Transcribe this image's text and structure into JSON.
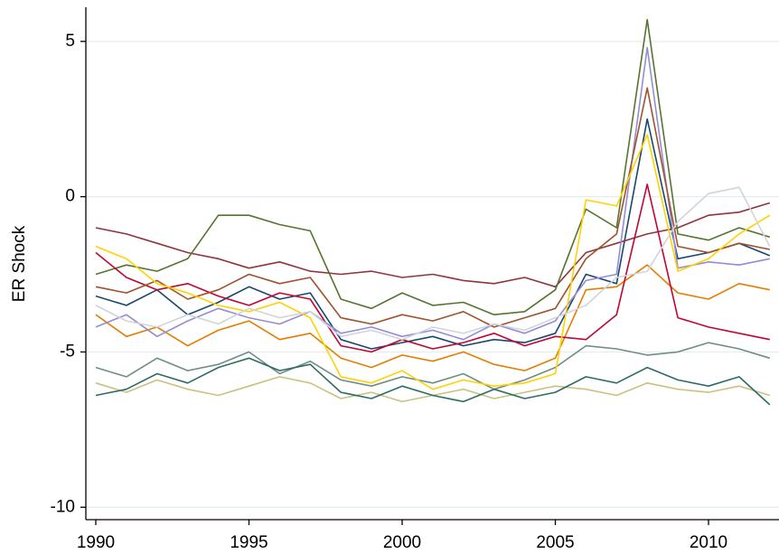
{
  "chart_data": {
    "type": "line",
    "y_label": "ER Shock",
    "x": [
      1990,
      1991,
      1992,
      1993,
      1994,
      1995,
      1996,
      1997,
      1998,
      1999,
      2000,
      2001,
      2002,
      2003,
      2004,
      2005,
      2006,
      2007,
      2008,
      2009,
      2010,
      2011,
      2012
    ],
    "xlim": [
      1990,
      2012
    ],
    "xticks": [
      1990,
      1995,
      2000,
      2005,
      2010
    ],
    "ylim": [
      -10.4,
      6.1
    ],
    "yticks": [
      -10,
      -5,
      0,
      5
    ],
    "grid": true,
    "series": [
      {
        "color": "#1a476f",
        "values": [
          -3.2,
          -3.5,
          -3.0,
          -3.8,
          -3.4,
          -2.9,
          -3.3,
          -3.1,
          -4.6,
          -4.9,
          -4.7,
          -4.5,
          -4.8,
          -4.6,
          -4.7,
          -4.4,
          -2.5,
          -2.8,
          2.5,
          -2.0,
          -1.8,
          -1.5,
          -1.9
        ]
      },
      {
        "color": "#90353b",
        "values": [
          -1.0,
          -1.2,
          -1.5,
          -1.8,
          -2.0,
          -2.3,
          -2.1,
          -2.4,
          -2.5,
          -2.4,
          -2.6,
          -2.5,
          -2.7,
          -2.8,
          -2.6,
          -2.9,
          -1.8,
          -1.5,
          -1.2,
          -1.0,
          -0.6,
          -0.5,
          -0.2
        ]
      },
      {
        "color": "#55752f",
        "values": [
          -2.5,
          -2.2,
          -2.4,
          -2.0,
          -0.6,
          -0.6,
          -0.9,
          -1.1,
          -3.3,
          -3.6,
          -3.1,
          -3.5,
          -3.4,
          -3.8,
          -3.7,
          -3.0,
          -0.4,
          -1.0,
          5.7,
          -1.2,
          -1.4,
          -1.0,
          -1.3
        ]
      },
      {
        "color": "#e37e00",
        "values": [
          -3.8,
          -4.5,
          -4.2,
          -4.8,
          -4.3,
          -4.0,
          -4.6,
          -4.4,
          -5.2,
          -5.5,
          -5.1,
          -5.3,
          -5.0,
          -5.4,
          -5.6,
          -5.2,
          -3.0,
          -2.9,
          -2.2,
          -3.1,
          -3.3,
          -2.8,
          -3.0
        ]
      },
      {
        "color": "#6e8e84",
        "values": [
          -5.5,
          -5.8,
          -5.2,
          -5.6,
          -5.4,
          -5.0,
          -5.7,
          -5.3,
          -5.9,
          -6.1,
          -5.8,
          -6.0,
          -5.7,
          -6.2,
          -5.9,
          -5.5,
          -4.8,
          -4.9,
          -5.1,
          -5.0,
          -4.7,
          -4.9,
          -5.2
        ]
      },
      {
        "color": "#c10534",
        "values": [
          -1.8,
          -2.6,
          -3.0,
          -2.8,
          -3.2,
          -3.5,
          -3.1,
          -3.3,
          -4.8,
          -5.0,
          -4.6,
          -4.9,
          -4.7,
          -4.4,
          -4.8,
          -4.5,
          -4.6,
          -3.8,
          0.4,
          -3.9,
          -4.2,
          -4.4,
          -4.6
        ]
      },
      {
        "color": "#938dd2",
        "values": [
          -4.2,
          -3.8,
          -4.5,
          -4.0,
          -3.6,
          -3.9,
          -4.1,
          -3.7,
          -4.4,
          -4.2,
          -4.5,
          -4.3,
          -4.6,
          -4.1,
          -4.4,
          -4.0,
          -2.7,
          -2.5,
          4.8,
          -2.3,
          -2.1,
          -2.2,
          -2.0
        ]
      },
      {
        "color": "#cac27e",
        "values": [
          -6.0,
          -6.3,
          -5.9,
          -6.2,
          -6.4,
          -6.1,
          -5.8,
          -6.0,
          -6.5,
          -6.3,
          -6.6,
          -6.4,
          -6.2,
          -6.5,
          -6.3,
          -6.1,
          -6.2,
          -6.4,
          -6.0,
          -6.2,
          -6.3,
          -6.1,
          -6.4
        ]
      },
      {
        "color": "#a0522d",
        "values": [
          -2.9,
          -3.1,
          -2.7,
          -3.3,
          -3.0,
          -2.5,
          -2.8,
          -2.6,
          -3.9,
          -4.1,
          -3.8,
          -4.0,
          -3.7,
          -4.2,
          -3.9,
          -3.6,
          -2.0,
          -1.2,
          3.5,
          -1.6,
          -1.8,
          -1.5,
          -1.7
        ]
      },
      {
        "color": "#ffd200",
        "values": [
          -1.6,
          -2.0,
          -2.8,
          -3.1,
          -3.5,
          -3.7,
          -3.4,
          -3.9,
          -5.8,
          -6.0,
          -5.6,
          -6.2,
          -5.9,
          -6.1,
          -6.0,
          -5.7,
          -0.1,
          -0.3,
          2.0,
          -2.4,
          -2.0,
          -1.2,
          -0.6
        ]
      },
      {
        "color": "#2d6d66",
        "values": [
          -6.4,
          -6.2,
          -5.7,
          -6.0,
          -5.5,
          -5.2,
          -5.6,
          -5.4,
          -6.3,
          -6.5,
          -6.1,
          -6.4,
          -6.6,
          -6.2,
          -6.5,
          -6.3,
          -5.8,
          -6.0,
          -5.5,
          -5.9,
          -6.1,
          -5.8,
          -6.7
        ]
      },
      {
        "color": "#d0d4dc",
        "values": [
          -3.5,
          -4.0,
          -4.2,
          -3.8,
          -4.1,
          -3.6,
          -3.9,
          -3.7,
          -4.5,
          -4.3,
          -4.6,
          -4.2,
          -4.4,
          -4.1,
          -4.3,
          -3.9,
          -3.5,
          -2.6,
          -2.4,
          -0.8,
          0.1,
          0.3,
          -1.6
        ]
      }
    ]
  }
}
